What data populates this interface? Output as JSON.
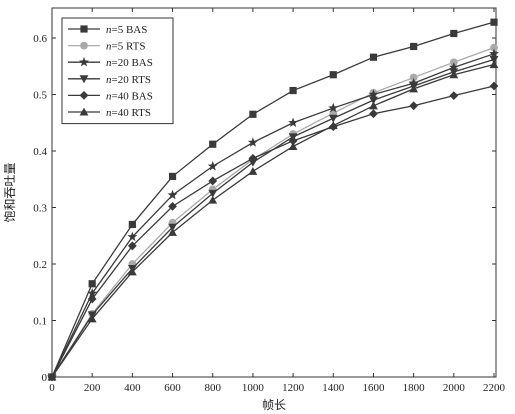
{
  "chart_data": {
    "type": "line",
    "xlabel": "帧长",
    "ylabel": "饱和吞吐量",
    "x": [
      0,
      200,
      400,
      600,
      800,
      1000,
      1200,
      1400,
      1600,
      1800,
      2000,
      2200
    ],
    "xticks": [
      "0",
      "200",
      "400",
      "600",
      "800",
      "1000",
      "1200",
      "1400",
      "1600",
      "1800",
      "2000",
      "2200"
    ],
    "yticks": [
      "0",
      "0.1",
      "0.2",
      "0.3",
      "0.4",
      "0.5",
      "0.6"
    ],
    "xlim": [
      0,
      2200
    ],
    "ylim": [
      0,
      0.65
    ],
    "grid": false,
    "legend_position": "top-left",
    "series": [
      {
        "name_prefix": "n",
        "name_suffix": "=5 BAS",
        "marker": "square",
        "color": "#3a3a3a",
        "values": [
          0,
          0.165,
          0.27,
          0.355,
          0.412,
          0.465,
          0.507,
          0.535,
          0.566,
          0.585,
          0.608,
          0.628
        ]
      },
      {
        "name_prefix": "n",
        "name_suffix": "=5 RTS",
        "marker": "circle",
        "color": "#aaaaaa",
        "values": [
          0,
          0.112,
          0.2,
          0.273,
          0.332,
          0.385,
          0.43,
          0.467,
          0.503,
          0.53,
          0.557,
          0.583
        ]
      },
      {
        "name_prefix": "n",
        "name_suffix": "=20 BAS",
        "marker": "star",
        "color": "#3a3a3a",
        "values": [
          0,
          0.148,
          0.248,
          0.322,
          0.373,
          0.415,
          0.45,
          0.476,
          0.5,
          0.52,
          0.548,
          0.572
        ]
      },
      {
        "name_prefix": "n",
        "name_suffix": "=20 RTS",
        "marker": "triangle-down",
        "color": "#3a3a3a",
        "values": [
          0,
          0.11,
          0.192,
          0.265,
          0.325,
          0.38,
          0.425,
          0.458,
          0.49,
          0.515,
          0.54,
          0.562
        ]
      },
      {
        "name_prefix": "n",
        "name_suffix": "=40 BAS",
        "marker": "diamond",
        "color": "#3a3a3a",
        "values": [
          0,
          0.138,
          0.232,
          0.302,
          0.347,
          0.387,
          0.418,
          0.443,
          0.466,
          0.48,
          0.498,
          0.515
        ]
      },
      {
        "name_prefix": "n",
        "name_suffix": "=40 RTS",
        "marker": "triangle-up",
        "color": "#3a3a3a",
        "values": [
          0,
          0.103,
          0.186,
          0.256,
          0.313,
          0.364,
          0.408,
          0.445,
          0.48,
          0.51,
          0.535,
          0.553
        ]
      }
    ]
  }
}
